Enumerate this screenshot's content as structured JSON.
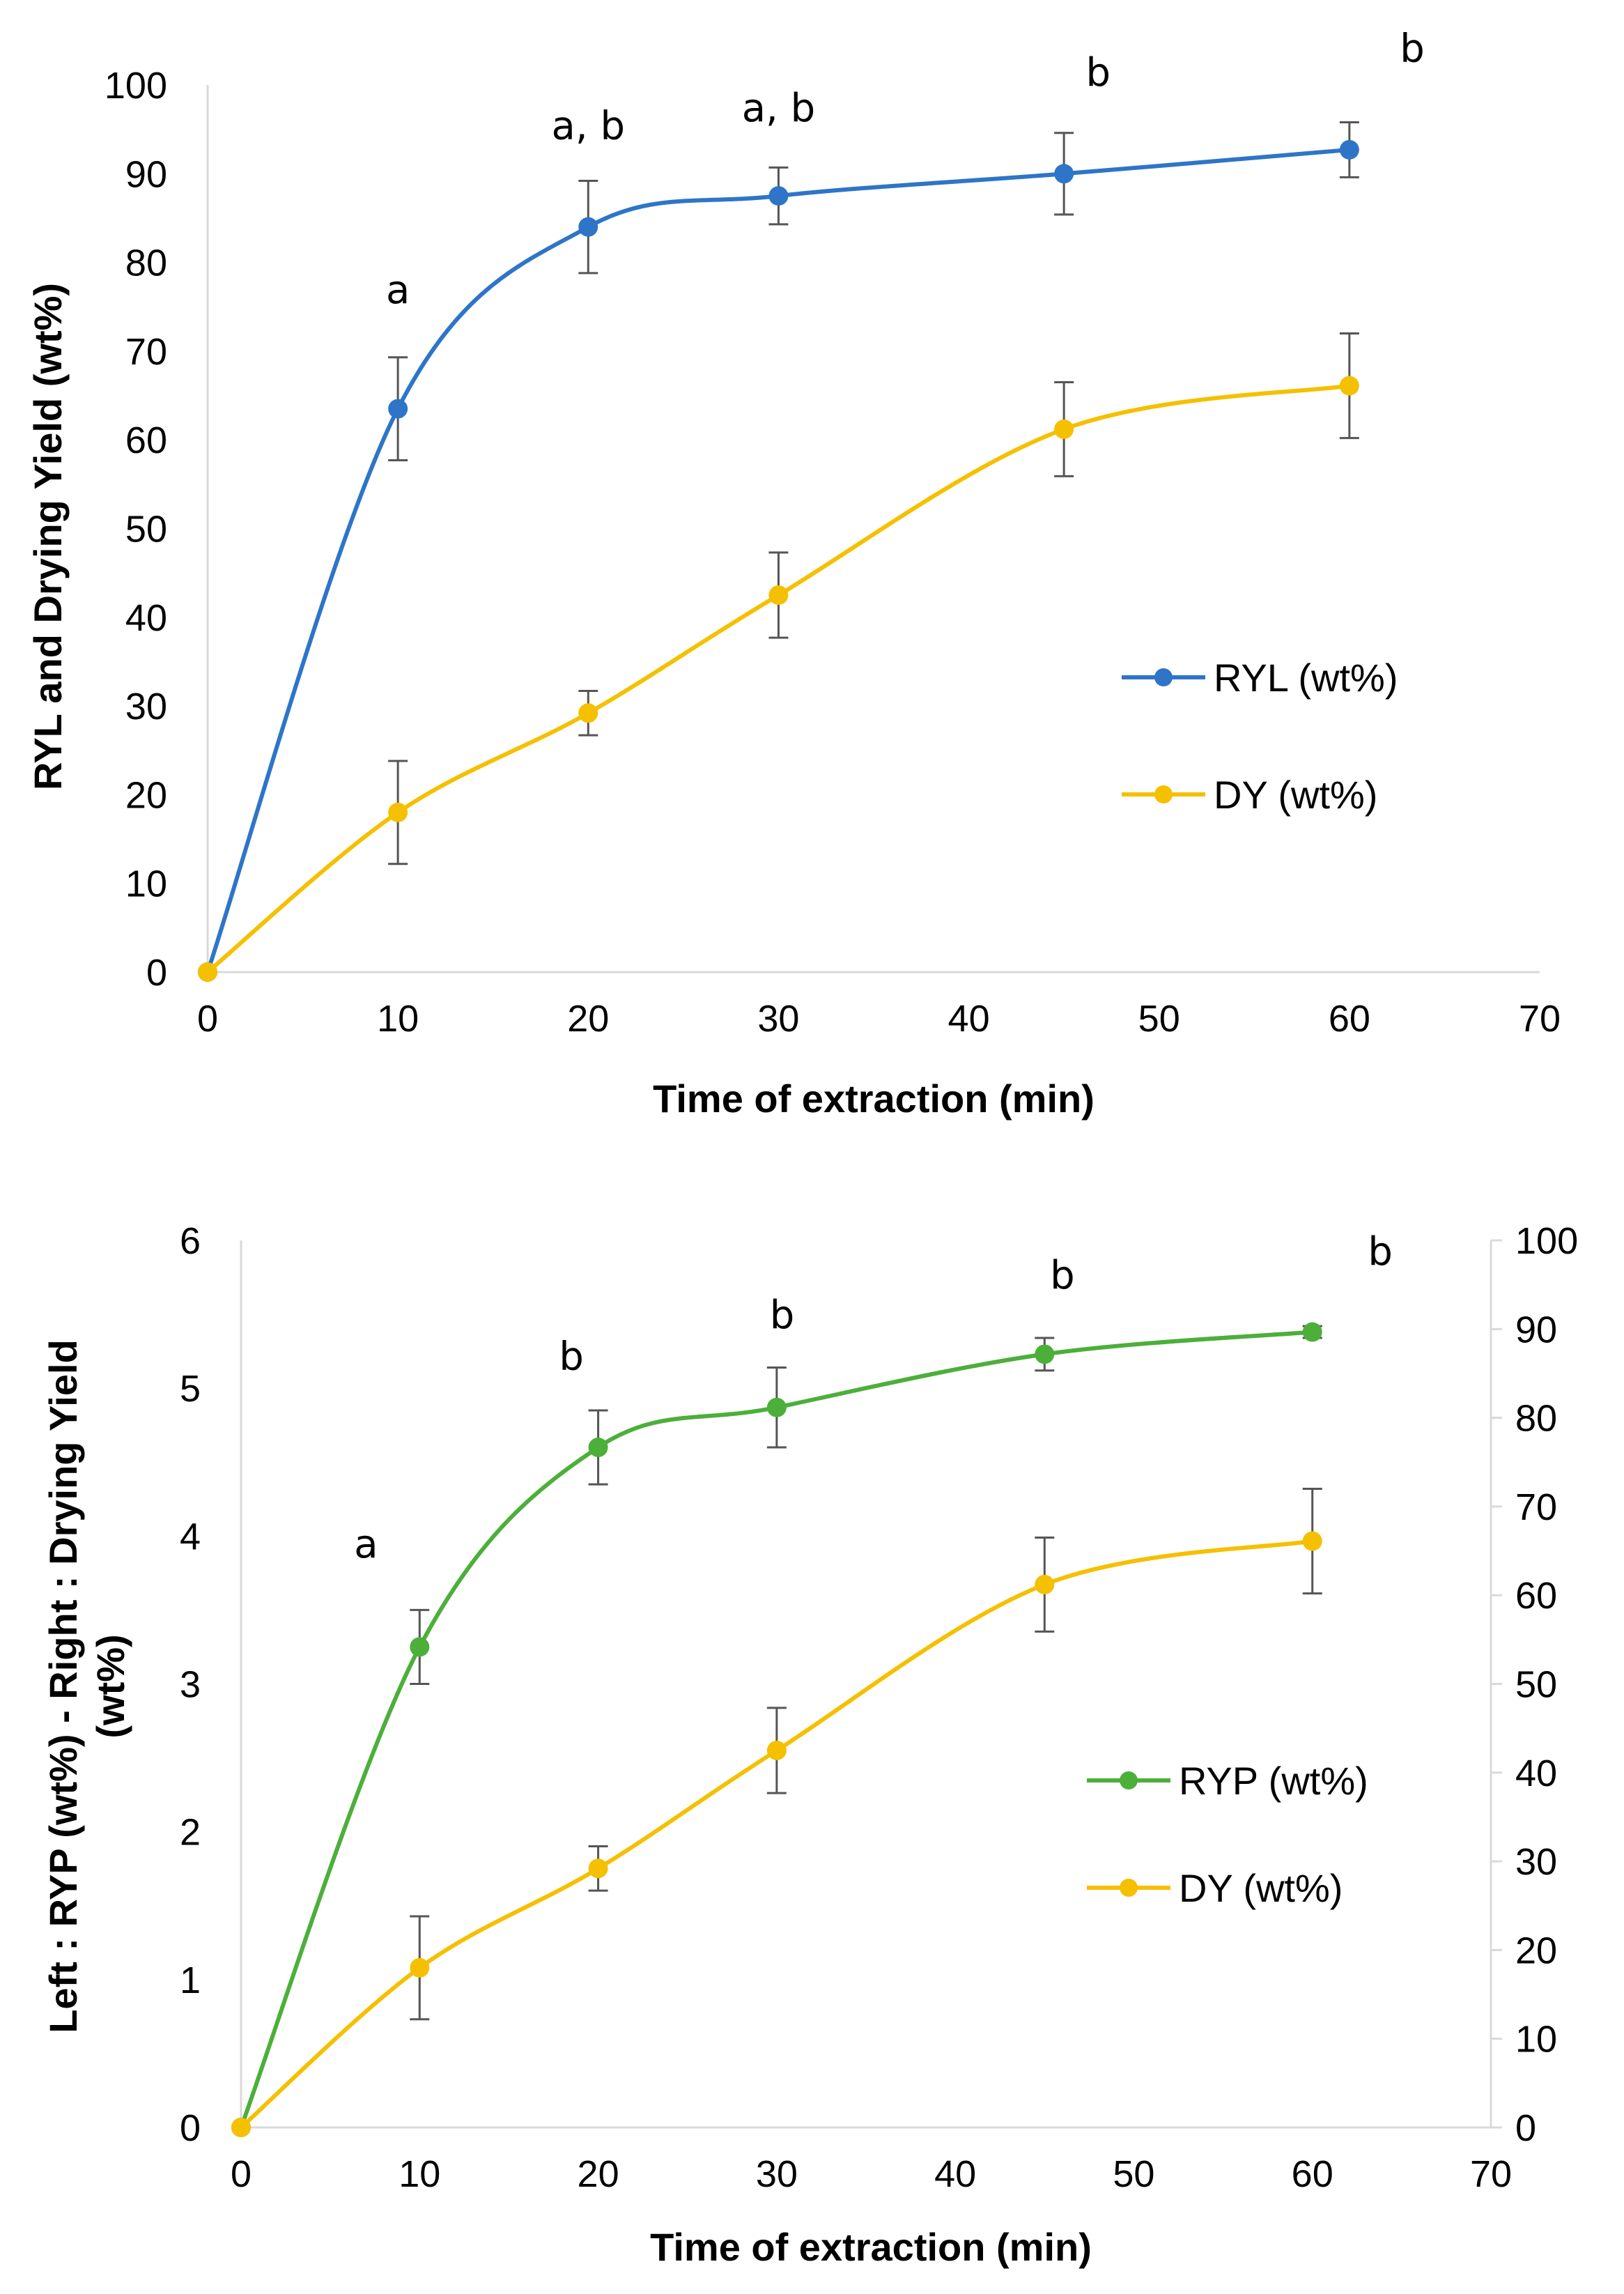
{
  "chart_data": [
    {
      "type": "line",
      "xlabel": "Time of extraction (min)",
      "ylabel": "RYL and Drying Yield (wt%)",
      "xlim": [
        0,
        70
      ],
      "ylim": [
        0,
        100
      ],
      "x_ticks": [
        "0",
        "10",
        "20",
        "30",
        "40",
        "50",
        "60",
        "70"
      ],
      "y_ticks": [
        "0",
        "10",
        "20",
        "30",
        "40",
        "50",
        "60",
        "70",
        "80",
        "90",
        "100"
      ],
      "x": [
        0,
        10,
        20,
        30,
        45,
        60
      ],
      "series": [
        {
          "name": "RYL (wt%)",
          "color": "#2E75C8",
          "values": [
            0,
            63.5,
            84,
            87.5,
            90,
            92.7
          ],
          "errors": [
            0,
            5.8,
            5.2,
            3.2,
            4.6,
            3.1
          ]
        },
        {
          "name": "DY (wt%)",
          "color": "#F5C000",
          "values": [
            0,
            18,
            29.2,
            42.5,
            61.2,
            66.1
          ],
          "errors": [
            0,
            5.8,
            2.5,
            4.8,
            5.3,
            5.9
          ]
        }
      ],
      "annotations": [
        {
          "x": 10,
          "y": 77,
          "text": "a"
        },
        {
          "x": 20,
          "y": 95.5,
          "text": "a, b"
        },
        {
          "x": 30,
          "y": 97.5,
          "text": "a, b"
        },
        {
          "x": 46.8,
          "y": 101.5,
          "text": "b"
        },
        {
          "x": 63.3,
          "y": 104.2,
          "text": "b"
        }
      ]
    },
    {
      "type": "line",
      "xlabel": "Time of extraction (min)",
      "ylabel_line1": "Left : RYP (wt%) - Right : Drying Yield",
      "ylabel_line2": "(wt%)",
      "xlim": [
        0,
        70
      ],
      "ylim": [
        0,
        6
      ],
      "y2lim": [
        0,
        100
      ],
      "x_ticks": [
        "0",
        "10",
        "20",
        "30",
        "40",
        "50",
        "60",
        "70"
      ],
      "y_ticks": [
        "0",
        "1",
        "2",
        "3",
        "4",
        "5",
        "6"
      ],
      "y2_ticks": [
        "0",
        "10",
        "20",
        "30",
        "40",
        "50",
        "60",
        "70",
        "80",
        "90",
        "100"
      ],
      "x": [
        0,
        10,
        20,
        30,
        45,
        60
      ],
      "series": [
        {
          "name": "RYP (wt%)",
          "axis": "left",
          "color": "#4CAF3A",
          "values": [
            0,
            3.25,
            4.6,
            4.87,
            5.23,
            5.38
          ],
          "errors": [
            0,
            0.25,
            0.25,
            0.27,
            0.11,
            0.04
          ]
        },
        {
          "name": "DY (wt%)",
          "axis": "right",
          "color": "#F5C000",
          "values": [
            0,
            18,
            29.2,
            42.5,
            61.2,
            66.1
          ],
          "errors": [
            0,
            5.8,
            2.5,
            4.8,
            5.3,
            5.9
          ]
        }
      ],
      "annotations": [
        {
          "x": 7,
          "y": 3.95,
          "text": "a"
        },
        {
          "x": 18.5,
          "y": 5.22,
          "text": "b"
        },
        {
          "x": 30.3,
          "y": 5.5,
          "text": "b"
        },
        {
          "x": 46,
          "y": 5.77,
          "text": "b"
        },
        {
          "x": 63.8,
          "y": 5.93,
          "text": "b"
        }
      ]
    }
  ]
}
